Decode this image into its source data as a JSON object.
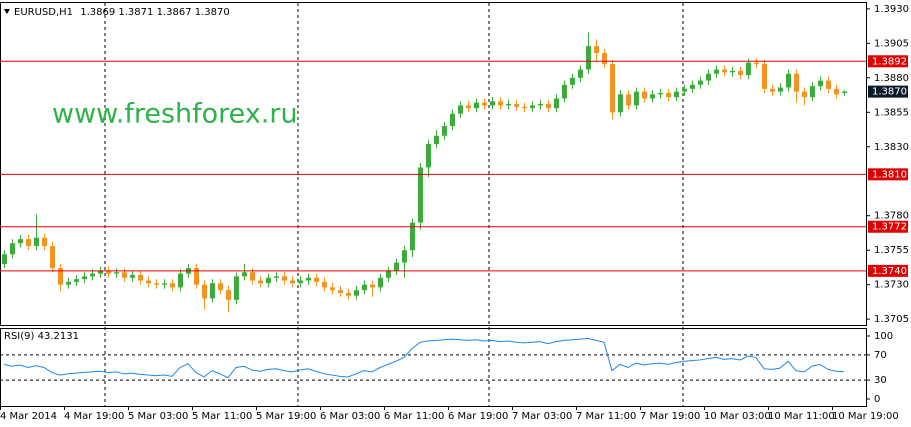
{
  "chart_data": {
    "type": "candlestick",
    "title": "EURUSD,H1",
    "bar_values": [
      "1.3869",
      "1.3871",
      "1.3867",
      "1.3870"
    ],
    "watermark": "www.freshforex.ru",
    "categories": [
      "4 Mar 2014",
      null,
      null,
      null,
      null,
      null,
      null,
      null,
      "4 Mar 19:00",
      null,
      null,
      null,
      null,
      null,
      null,
      null,
      "5 Mar 03:00",
      null,
      null,
      null,
      null,
      null,
      null,
      null,
      "5 Mar 11:00",
      null,
      null,
      null,
      null,
      null,
      null,
      null,
      "5 Mar 19:00",
      null,
      null,
      null,
      null,
      null,
      null,
      null,
      "6 Mar 03:00",
      null,
      null,
      null,
      null,
      null,
      null,
      null,
      "6 Mar 11:00",
      null,
      null,
      null,
      null,
      null,
      null,
      null,
      "6 Mar 19:00",
      null,
      null,
      null,
      null,
      null,
      null,
      null,
      "7 Mar 03:00",
      null,
      null,
      null,
      null,
      null,
      null,
      null,
      "7 Mar 11:00",
      null,
      null,
      null,
      null,
      null,
      null,
      null,
      "7 Mar 19:00",
      null,
      null,
      null,
      null,
      null,
      null,
      null,
      "10 Mar 03:00",
      null,
      null,
      null,
      null,
      null,
      null,
      null,
      "10 Mar 11:00",
      null,
      null,
      null,
      null,
      null,
      null,
      null,
      "10 Mar 19:00",
      null
    ],
    "open": [
      1.3745,
      1.3752,
      1.376,
      1.3763,
      1.3758,
      1.3764,
      1.3758,
      1.3742,
      1.373,
      1.3732,
      1.3734,
      1.3736,
      1.3738,
      1.374,
      1.3738,
      1.3739,
      1.3735,
      1.3737,
      1.3733,
      1.3731,
      1.373,
      1.3731,
      1.3728,
      1.3738,
      1.3742,
      1.373,
      1.372,
      1.3731,
      1.3726,
      1.3719,
      1.3736,
      1.3739,
      1.3733,
      1.3731,
      1.3735,
      1.3736,
      1.3733,
      1.3731,
      1.3733,
      1.3735,
      1.3732,
      1.3728,
      1.3726,
      1.3724,
      1.3722,
      1.3726,
      1.373,
      1.3728,
      1.3735,
      1.374,
      1.3746,
      1.3755,
      1.3775,
      1.3815,
      1.3832,
      1.3838,
      1.3845,
      1.3854,
      1.386,
      1.3858,
      1.3862,
      1.386,
      1.3863,
      1.386,
      1.3861,
      1.3859,
      1.3858,
      1.386,
      1.3861,
      1.3858,
      1.3865,
      1.3875,
      1.388,
      1.3886,
      1.3903,
      1.3898,
      1.389,
      1.3855,
      1.3868,
      1.386,
      1.387,
      1.3865,
      1.3868,
      1.3869,
      1.3866,
      1.387,
      1.3872,
      1.3875,
      1.3878,
      1.3883,
      1.3886,
      1.3884,
      1.3885,
      1.3882,
      1.3891,
      1.389,
      1.3872,
      1.387,
      1.3873,
      1.3883,
      1.387,
      1.3866,
      1.3874,
      1.3878,
      1.3872,
      1.3869
    ],
    "high": [
      1.3755,
      1.3763,
      1.3766,
      1.3766,
      1.3781,
      1.3767,
      1.3761,
      1.3745,
      1.3735,
      1.3737,
      1.3739,
      1.3741,
      1.3743,
      1.3743,
      1.3742,
      1.3742,
      1.374,
      1.374,
      1.3736,
      1.3734,
      1.3734,
      1.3734,
      1.3741,
      1.3745,
      1.3745,
      1.3733,
      1.3734,
      1.3734,
      1.3729,
      1.3739,
      1.3745,
      1.3742,
      1.3736,
      1.3738,
      1.3739,
      1.3739,
      1.3736,
      1.3736,
      1.3738,
      1.3738,
      1.3735,
      1.3731,
      1.3729,
      1.3727,
      1.3729,
      1.3733,
      1.3733,
      1.3738,
      1.3743,
      1.3749,
      1.3758,
      1.3778,
      1.3818,
      1.3835,
      1.3842,
      1.3848,
      1.3857,
      1.3863,
      1.3863,
      1.3865,
      1.3865,
      1.3866,
      1.3866,
      1.3864,
      1.3864,
      1.3862,
      1.3863,
      1.3864,
      1.3864,
      1.3868,
      1.3878,
      1.3883,
      1.3889,
      1.3913,
      1.3908,
      1.3901,
      1.3893,
      1.3871,
      1.3871,
      1.3873,
      1.3873,
      1.3871,
      1.3872,
      1.3872,
      1.3873,
      1.3875,
      1.3878,
      1.3881,
      1.3886,
      1.3889,
      1.3889,
      1.3888,
      1.3888,
      1.3894,
      1.3894,
      1.3893,
      1.3875,
      1.3876,
      1.3886,
      1.3886,
      1.3873,
      1.3877,
      1.3881,
      1.3881,
      1.3875,
      1.3871
    ],
    "low": [
      1.3742,
      1.3749,
      1.3757,
      1.3755,
      1.3755,
      1.3755,
      1.3739,
      1.3725,
      1.3727,
      1.3729,
      1.3731,
      1.3733,
      1.3735,
      1.3735,
      1.3735,
      1.3732,
      1.3732,
      1.373,
      1.3728,
      1.3727,
      1.3727,
      1.3725,
      1.3725,
      1.3735,
      1.3727,
      1.3712,
      1.3717,
      1.3723,
      1.371,
      1.3716,
      1.3733,
      1.373,
      1.3728,
      1.3728,
      1.3732,
      1.373,
      1.3728,
      1.3728,
      1.373,
      1.3729,
      1.3725,
      1.3723,
      1.3721,
      1.3719,
      1.3719,
      1.3723,
      1.3721,
      1.3725,
      1.3732,
      1.3737,
      1.3735,
      1.375,
      1.377,
      1.3808,
      1.3829,
      1.3835,
      1.3842,
      1.3851,
      1.3855,
      1.3855,
      1.3857,
      1.3857,
      1.3857,
      1.3857,
      1.3856,
      1.3855,
      1.3855,
      1.3857,
      1.3855,
      1.3855,
      1.3862,
      1.3872,
      1.3877,
      1.3883,
      1.3892,
      1.3887,
      1.385,
      1.3852,
      1.3857,
      1.3857,
      1.3862,
      1.3862,
      1.3865,
      1.3863,
      1.3863,
      1.3867,
      1.3869,
      1.3872,
      1.3875,
      1.388,
      1.3881,
      1.3881,
      1.3879,
      1.3879,
      1.3887,
      1.3869,
      1.3867,
      1.3867,
      1.387,
      1.3862,
      1.386,
      1.3863,
      1.3871,
      1.3869,
      1.3865,
      1.3867
    ],
    "close": [
      1.3752,
      1.376,
      1.3763,
      1.3758,
      1.3764,
      1.3758,
      1.3742,
      1.373,
      1.3732,
      1.3734,
      1.3736,
      1.3738,
      1.374,
      1.3738,
      1.3739,
      1.3735,
      1.3737,
      1.3733,
      1.3731,
      1.373,
      1.3731,
      1.3728,
      1.3738,
      1.3742,
      1.373,
      1.372,
      1.3731,
      1.3726,
      1.3719,
      1.3736,
      1.3739,
      1.3733,
      1.3731,
      1.3735,
      1.3736,
      1.3733,
      1.3731,
      1.3733,
      1.3735,
      1.3732,
      1.3728,
      1.3726,
      1.3724,
      1.3722,
      1.3726,
      1.373,
      1.3728,
      1.3735,
      1.374,
      1.3746,
      1.3755,
      1.3775,
      1.3815,
      1.3832,
      1.3838,
      1.3845,
      1.3854,
      1.386,
      1.3858,
      1.3862,
      1.386,
      1.3863,
      1.386,
      1.3861,
      1.3859,
      1.3858,
      1.386,
      1.3861,
      1.3858,
      1.3865,
      1.3875,
      1.388,
      1.3886,
      1.3903,
      1.3898,
      1.389,
      1.3855,
      1.3868,
      1.386,
      1.387,
      1.3865,
      1.3868,
      1.3869,
      1.3866,
      1.387,
      1.3872,
      1.3875,
      1.3878,
      1.3883,
      1.3886,
      1.3884,
      1.3885,
      1.3882,
      1.3891,
      1.389,
      1.3872,
      1.387,
      1.3873,
      1.3883,
      1.387,
      1.3866,
      1.3874,
      1.3878,
      1.3872,
      1.3868,
      1.387
    ],
    "up_color": "#3cab3c",
    "down_color": "#f59222",
    "ylim": [
      1.37,
      1.3935
    ],
    "yticks": [
      {
        "value": 1.393,
        "label": "1.3930"
      },
      {
        "value": 1.3905,
        "label": "1.3905"
      },
      {
        "value": 1.388,
        "label": "1.3880"
      },
      {
        "value": 1.3855,
        "label": "1.3855"
      },
      {
        "value": 1.383,
        "label": "1.3830"
      },
      {
        "value": 1.378,
        "label": "1.3780"
      },
      {
        "value": 1.3755,
        "label": "1.3755"
      },
      {
        "value": 1.373,
        "label": "1.3730"
      },
      {
        "value": 1.3705,
        "label": "1.3705"
      }
    ],
    "levels": [
      {
        "value": 1.3892,
        "label": "1.3892"
      },
      {
        "value": 1.381,
        "label": "1.3810"
      },
      {
        "value": 1.3772,
        "label": "1.3772"
      },
      {
        "value": 1.374,
        "label": "1.3740"
      }
    ],
    "level_color": "#e00000",
    "current_price": {
      "value": 1.387,
      "label": "1.3870"
    },
    "rsi": {
      "name": "RSI(9)",
      "value": 43.2131,
      "color": "#1e88e5",
      "values": [
        55,
        52,
        54,
        50,
        53,
        50,
        42,
        38,
        40,
        41,
        42,
        43,
        44,
        42,
        43,
        40,
        41,
        39,
        38,
        37,
        38,
        36,
        50,
        56,
        42,
        35,
        45,
        40,
        34,
        50,
        52,
        46,
        44,
        47,
        48,
        45,
        43,
        46,
        48,
        44,
        40,
        38,
        36,
        35,
        40,
        45,
        43,
        50,
        55,
        60,
        66,
        80,
        90,
        92,
        93,
        94,
        95,
        94,
        93,
        94,
        92,
        93,
        91,
        92,
        90,
        89,
        90,
        91,
        88,
        91,
        93,
        94,
        95,
        96,
        93,
        90,
        45,
        55,
        50,
        57,
        54,
        56,
        57,
        55,
        58,
        60,
        61,
        62,
        64,
        66,
        63,
        64,
        62,
        68,
        66,
        48,
        47,
        49,
        60,
        45,
        43,
        52,
        55,
        47,
        44,
        43.2131
      ],
      "ylim": [
        0,
        100
      ],
      "yticks": [
        0,
        30,
        70,
        100
      ],
      "levels": [
        30,
        70
      ]
    }
  }
}
